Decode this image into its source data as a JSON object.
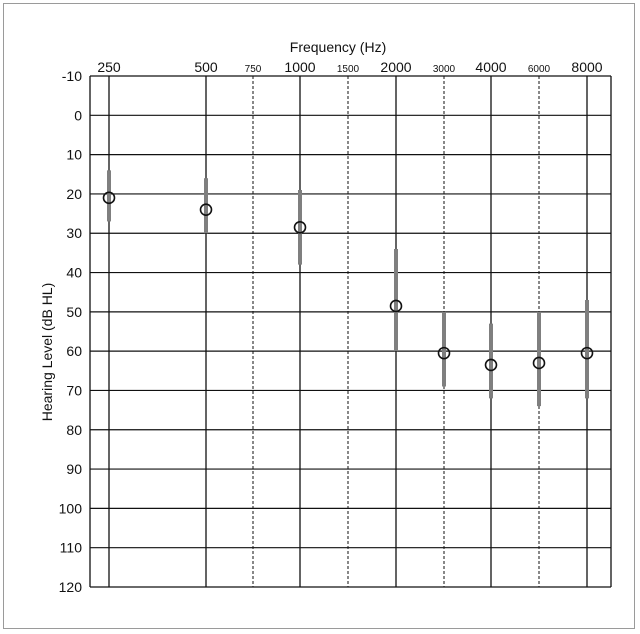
{
  "chart_data": {
    "type": "scatter",
    "title": "Frequency (Hz)",
    "xlabel": "Frequency (Hz)",
    "ylabel": "Hearing Level (dB HL)",
    "x_ticks": [
      {
        "label": "250",
        "major": true
      },
      {
        "label": "500",
        "major": true
      },
      {
        "label": "750",
        "major": false
      },
      {
        "label": "1000",
        "major": true
      },
      {
        "label": "1500",
        "major": false
      },
      {
        "label": "2000",
        "major": true
      },
      {
        "label": "3000",
        "major": false
      },
      {
        "label": "4000",
        "major": true
      },
      {
        "label": "6000",
        "major": false
      },
      {
        "label": "8000",
        "major": true
      }
    ],
    "y_ticks": [
      "-10",
      "0",
      "10",
      "20",
      "30",
      "40",
      "50",
      "60",
      "70",
      "80",
      "90",
      "100",
      "110",
      "120"
    ],
    "ylim": [
      -10,
      120
    ],
    "y_inverted": true,
    "grid": true,
    "points": [
      {
        "x": "250",
        "y": 21,
        "low": 14,
        "high": 27
      },
      {
        "x": "500",
        "y": 24,
        "low": 16,
        "high": 30
      },
      {
        "x": "1000",
        "y": 28.5,
        "low": 19,
        "high": 38
      },
      {
        "x": "2000",
        "y": 48.5,
        "low": 34,
        "high": 60
      },
      {
        "x": "3000",
        "y": 60.5,
        "low": 50,
        "high": 69
      },
      {
        "x": "4000",
        "y": 63.5,
        "low": 53,
        "high": 72
      },
      {
        "x": "6000",
        "y": 63,
        "low": 50,
        "high": 74
      },
      {
        "x": "8000",
        "y": 60.5,
        "low": 47,
        "high": 72
      }
    ],
    "colors": {
      "grid": "#111111",
      "error_bar": "#7f7f7f",
      "marker": "#111111"
    }
  }
}
